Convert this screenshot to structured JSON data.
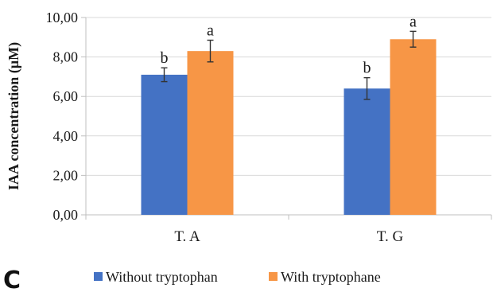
{
  "panel_label": "C",
  "chart_data": {
    "type": "bar",
    "ylabel": "IAA concentration  (µM)",
    "xlabel": "",
    "ylim": [
      0,
      10
    ],
    "ytick_step": 2,
    "ytick_labels": [
      "0,00",
      "2,00",
      "4,00",
      "6,00",
      "8,00",
      "10,00"
    ],
    "grid": true,
    "legend_position": "bottom",
    "categories": [
      "T. A",
      "T. G"
    ],
    "series": [
      {
        "name": "Without tryptophan",
        "color": "#4472c4",
        "values": [
          7.1,
          6.4
        ],
        "errors": [
          0.35,
          0.55
        ],
        "significance": [
          "b",
          "b"
        ]
      },
      {
        "name": "With tryptophane",
        "color": "#f79646",
        "values": [
          8.3,
          8.9
        ],
        "errors": [
          0.55,
          0.4
        ],
        "significance": [
          "a",
          "a"
        ]
      }
    ]
  }
}
